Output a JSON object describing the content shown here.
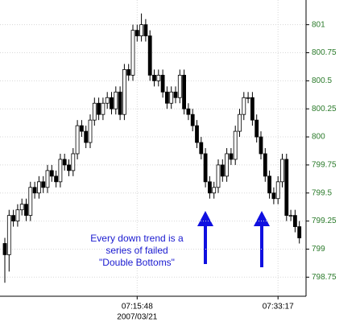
{
  "chart_data": {
    "type": "candlestick",
    "categories": [
      null,
      null,
      null,
      null,
      null,
      null,
      null,
      null,
      null,
      null,
      null,
      null,
      null,
      null,
      null,
      null,
      null,
      null,
      null,
      null,
      null,
      null,
      null,
      null,
      null,
      null,
      null,
      null,
      null,
      null,
      null,
      "07:15:48",
      null,
      null,
      null,
      null,
      null,
      null,
      null,
      null,
      null,
      null,
      null,
      null,
      null,
      null,
      null,
      null,
      null,
      null,
      null,
      null,
      null,
      null,
      null,
      null,
      null,
      null,
      null,
      null,
      null,
      null,
      null,
      null,
      "07:33:17",
      null,
      null,
      null,
      null,
      null
    ],
    "date_label": "2007/03/21",
    "open": [
      799.05,
      798.95,
      799.3,
      799.25,
      799.35,
      799.4,
      799.3,
      799.55,
      799.5,
      799.6,
      799.55,
      799.7,
      799.65,
      799.6,
      799.8,
      799.75,
      799.7,
      799.85,
      800.1,
      800.05,
      799.95,
      800.15,
      800.3,
      800.2,
      800.3,
      800.35,
      800.25,
      800.4,
      800.2,
      800.6,
      800.55,
      800.95,
      800.9,
      801.0,
      800.9,
      800.55,
      800.5,
      800.55,
      800.4,
      800.3,
      800.4,
      800.35,
      800.55,
      800.25,
      800.2,
      800.1,
      799.95,
      799.85,
      799.6,
      799.5,
      799.55,
      799.75,
      799.65,
      799.85,
      799.8,
      800.05,
      800.2,
      800.35,
      800.35,
      800.15,
      800.0,
      799.85,
      799.65,
      799.5,
      799.45,
      799.6,
      799.8,
      799.3,
      799.3,
      799.2
    ],
    "high": [
      799.1,
      799.35,
      799.35,
      799.4,
      799.45,
      799.45,
      799.6,
      799.6,
      799.65,
      799.65,
      799.75,
      799.75,
      799.7,
      799.85,
      799.85,
      799.8,
      799.9,
      800.15,
      800.15,
      800.1,
      800.2,
      800.35,
      800.35,
      800.35,
      800.4,
      800.4,
      800.45,
      800.45,
      800.65,
      800.65,
      801.0,
      801.0,
      801.1,
      801.05,
      800.95,
      800.6,
      800.6,
      800.6,
      800.45,
      800.45,
      800.45,
      800.6,
      800.6,
      800.3,
      800.25,
      800.15,
      800.0,
      799.9,
      799.65,
      799.6,
      799.8,
      799.8,
      799.9,
      799.9,
      800.1,
      800.25,
      800.4,
      800.4,
      800.4,
      800.2,
      800.05,
      799.9,
      799.7,
      799.55,
      799.65,
      799.85,
      799.85,
      799.35,
      799.35,
      799.25
    ],
    "low": [
      798.7,
      798.8,
      799.2,
      799.2,
      799.3,
      799.25,
      799.25,
      799.45,
      799.45,
      799.5,
      799.5,
      799.6,
      799.55,
      799.55,
      799.7,
      799.65,
      799.65,
      799.8,
      800.0,
      799.9,
      799.9,
      800.1,
      800.15,
      800.15,
      800.25,
      800.2,
      800.2,
      800.15,
      800.15,
      800.5,
      800.5,
      800.85,
      800.85,
      800.85,
      800.5,
      800.45,
      800.45,
      800.35,
      800.25,
      800.25,
      800.3,
      800.3,
      800.2,
      800.15,
      800.05,
      799.9,
      799.8,
      799.55,
      799.45,
      799.45,
      799.5,
      799.6,
      799.6,
      799.75,
      799.75,
      800.0,
      800.15,
      800.3,
      800.1,
      799.95,
      799.8,
      799.6,
      799.45,
      799.4,
      799.4,
      799.55,
      799.25,
      799.25,
      799.15,
      799.05
    ],
    "close": [
      798.95,
      799.3,
      799.25,
      799.35,
      799.4,
      799.3,
      799.55,
      799.5,
      799.6,
      799.55,
      799.7,
      799.65,
      799.6,
      799.8,
      799.75,
      799.7,
      799.85,
      800.1,
      800.05,
      799.95,
      800.15,
      800.3,
      800.2,
      800.3,
      800.35,
      800.25,
      800.4,
      800.2,
      800.6,
      800.55,
      800.95,
      800.9,
      801.0,
      800.9,
      800.55,
      800.5,
      800.55,
      800.4,
      800.3,
      800.4,
      800.35,
      800.55,
      800.25,
      800.2,
      800.1,
      799.95,
      799.85,
      799.6,
      799.5,
      799.55,
      799.75,
      799.65,
      799.85,
      799.8,
      800.05,
      800.2,
      800.35,
      800.35,
      800.15,
      800.0,
      799.85,
      799.65,
      799.5,
      799.45,
      799.6,
      799.8,
      799.3,
      799.3,
      799.2,
      799.1
    ],
    "up_color": "#ffffff",
    "down_color": "#000000",
    "ylim": [
      798.58,
      801.22
    ],
    "yticks": [
      798.75,
      799,
      799.25,
      799.5,
      799.75,
      800,
      800.25,
      800.5,
      800.75,
      801
    ],
    "grid": true,
    "annotation": [
      "Every down trend is a",
      "series of failed",
      "\"Double Bottoms\""
    ]
  }
}
